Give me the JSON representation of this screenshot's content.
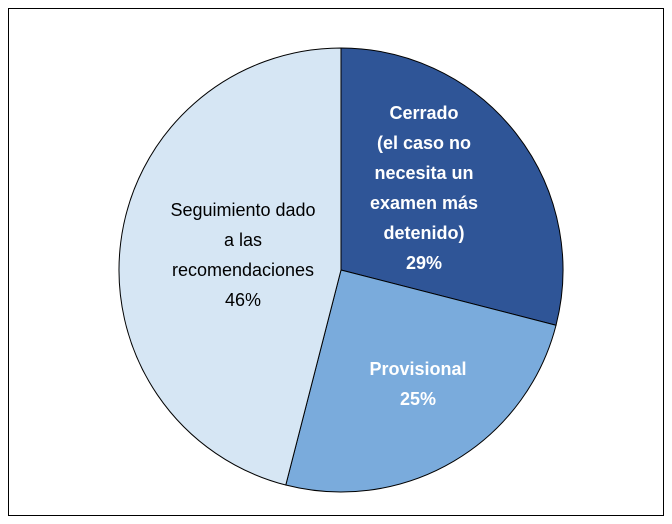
{
  "chart_data": {
    "type": "pie",
    "categories": [
      "Cerrado\n(el caso no\nnecesita un\nexamen más\ndetenido)",
      "Provisional",
      "Seguimiento dado\na las\nrecomendaciones"
    ],
    "values": [
      29,
      25,
      46
    ],
    "value_labels": [
      "29%",
      "25%",
      "46%"
    ],
    "colors": [
      "#2f5597",
      "#7aabdc",
      "#d6e6f4"
    ],
    "label_colors": [
      "#ffffff",
      "#ffffff",
      "#000000"
    ]
  }
}
